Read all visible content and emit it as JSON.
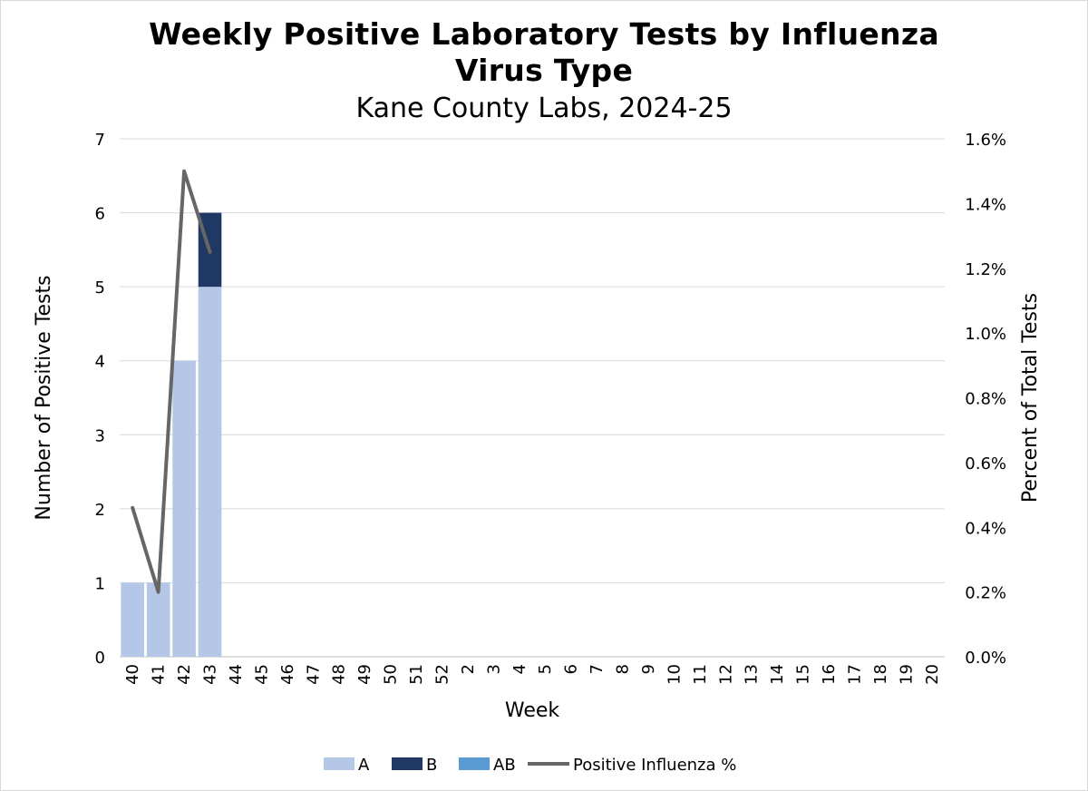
{
  "chart_data": {
    "type": "bar",
    "title_line1": "Weekly Positive Laboratory Tests by Influenza",
    "title_line2": "Virus Type",
    "subtitle": "Kane County Labs, 2024-25",
    "xlabel": "Week",
    "ylabel": "Number of Positive Tests",
    "y2label": "Percent of Total Tests",
    "ylim": [
      0,
      7
    ],
    "y2lim": [
      0,
      1.6
    ],
    "yticks": [
      "0",
      "1",
      "2",
      "3",
      "4",
      "5",
      "6",
      "7"
    ],
    "y2ticks": [
      "0.0%",
      "0.2%",
      "0.4%",
      "0.6%",
      "0.8%",
      "1.0%",
      "1.2%",
      "1.4%",
      "1.6%"
    ],
    "categories": [
      "40",
      "41",
      "42",
      "43",
      "44",
      "45",
      "46",
      "47",
      "48",
      "49",
      "50",
      "51",
      "52",
      "2",
      "3",
      "4",
      "5",
      "6",
      "7",
      "8",
      "9",
      "10",
      "11",
      "12",
      "13",
      "14",
      "15",
      "16",
      "17",
      "18",
      "19",
      "20"
    ],
    "stacked": true,
    "grid": true,
    "legend_position": "bottom",
    "series": [
      {
        "name": "A",
        "color": "#b4c7e7",
        "values": [
          1,
          1,
          4,
          5,
          0,
          0,
          0,
          0,
          0,
          0,
          0,
          0,
          0,
          0,
          0,
          0,
          0,
          0,
          0,
          0,
          0,
          0,
          0,
          0,
          0,
          0,
          0,
          0,
          0,
          0,
          0,
          0
        ]
      },
      {
        "name": "B",
        "color": "#203864",
        "values": [
          0,
          0,
          0,
          1,
          0,
          0,
          0,
          0,
          0,
          0,
          0,
          0,
          0,
          0,
          0,
          0,
          0,
          0,
          0,
          0,
          0,
          0,
          0,
          0,
          0,
          0,
          0,
          0,
          0,
          0,
          0,
          0
        ]
      },
      {
        "name": "AB",
        "color": "#5b9bd5",
        "values": [
          0,
          0,
          0,
          0,
          0,
          0,
          0,
          0,
          0,
          0,
          0,
          0,
          0,
          0,
          0,
          0,
          0,
          0,
          0,
          0,
          0,
          0,
          0,
          0,
          0,
          0,
          0,
          0,
          0,
          0,
          0,
          0
        ]
      }
    ],
    "line_series": {
      "name": "Positive Influenza %",
      "color": "#666666",
      "axis": "secondary",
      "values": [
        0.46,
        0.2,
        1.5,
        1.25
      ]
    }
  }
}
